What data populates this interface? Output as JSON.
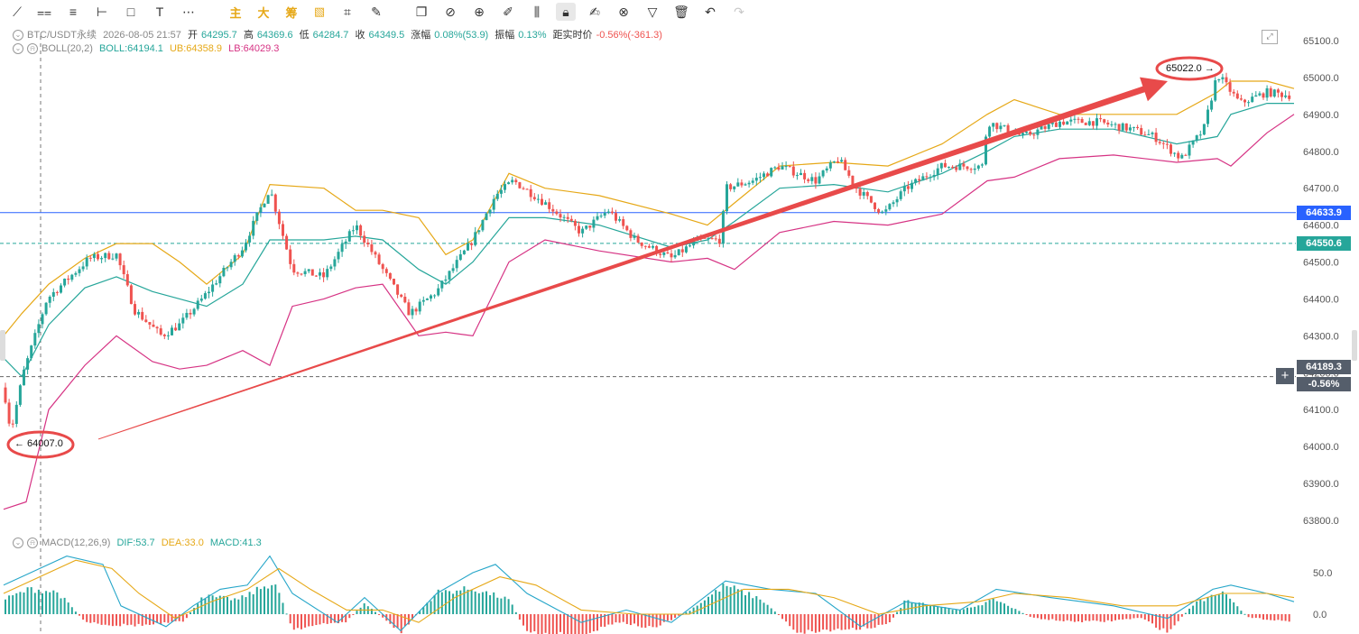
{
  "toolbar": {
    "tools": [
      {
        "icon": "trendline-icon",
        "glyph": "⟋"
      },
      {
        "icon": "parallel-lines-icon",
        "glyph": "⩵"
      },
      {
        "icon": "horizontal-lines-icon",
        "glyph": "≡"
      },
      {
        "icon": "ray-icon",
        "glyph": "⊢"
      },
      {
        "icon": "rectangle-icon",
        "glyph": "□"
      },
      {
        "icon": "text-icon",
        "glyph": "T"
      },
      {
        "icon": "more-dots-icon",
        "glyph": "⋯"
      },
      {
        "icon": "main-cn",
        "glyph": "主",
        "cn": true
      },
      {
        "icon": "big-cn",
        "glyph": "大",
        "cn": true
      },
      {
        "icon": "chip-cn",
        "glyph": "筹",
        "cn": true
      },
      {
        "icon": "indicator-icon",
        "glyph": "▧",
        "cn": true
      },
      {
        "icon": "measure-icon",
        "glyph": "⌗"
      },
      {
        "icon": "brush-icon",
        "glyph": "✎"
      },
      {
        "icon": "copy-icon",
        "glyph": "❐"
      },
      {
        "icon": "ruler-icon",
        "glyph": "⊘"
      },
      {
        "icon": "zoom-icon",
        "glyph": "⊕"
      },
      {
        "icon": "pen-icon",
        "glyph": "✐"
      },
      {
        "icon": "candle-icon",
        "glyph": "⫼"
      },
      {
        "icon": "lock-icon",
        "glyph": "🔒︎",
        "lock": true
      },
      {
        "icon": "edit-icon",
        "glyph": "✍︎"
      },
      {
        "icon": "magnet-icon",
        "glyph": "⊗"
      },
      {
        "icon": "filter-icon",
        "glyph": "▽"
      },
      {
        "icon": "trash-icon",
        "glyph": "🗑︎"
      },
      {
        "icon": "undo-icon",
        "glyph": "↶"
      },
      {
        "icon": "redo-icon",
        "glyph": "↷",
        "disabled": true
      }
    ]
  },
  "info": {
    "symbol": "BTC/USDT永续",
    "datetime": "2026-08-05 21:57",
    "open_label": "开",
    "open": "64295.7",
    "high_label": "高",
    "high": "64369.6",
    "low_label": "低",
    "low": "64284.7",
    "close_label": "收",
    "close": "64349.5",
    "change_label": "涨幅",
    "change": "0.08%(53.9)",
    "amp_label": "振幅",
    "amp": "0.13%",
    "dist_label": "距实时价",
    "dist": "-0.56%(-361.3)"
  },
  "boll": {
    "name": "BOLL(20,2)",
    "boll": "BOLL:64194.1",
    "ub": "UB:64358.9",
    "lb": "LB:64029.3"
  },
  "macd_info": {
    "name": "MACD(12,26,9)",
    "dif": "DIF:53.7",
    "dea": "DEA:33.0",
    "macd": "MACD:41.3"
  },
  "price_tags": {
    "line1": "64633.9",
    "line2": "64550.6",
    "current": "64189.3",
    "current_pct": "-0.56%"
  },
  "annotations": {
    "low": "← 64007.0",
    "high": "65022.0 →"
  },
  "colors": {
    "up": "#26a69a",
    "down": "#ef5350",
    "mid": "#26a69a",
    "ub": "#e6a817",
    "lb": "#d63384",
    "hline": "#2962ff",
    "arrow": "#e84a4a",
    "tag_blue": "#2962ff",
    "tag_green": "#26a69a",
    "tag_gray": "#555e6b"
  },
  "chart_data": {
    "type": "candlestick",
    "price_axis": {
      "ticks": [
        65100,
        65000,
        64900,
        64800,
        64700,
        64600,
        64500,
        64400,
        64300,
        64200,
        64100,
        64000,
        63900,
        63800
      ],
      "ylim": [
        63745,
        65145
      ]
    },
    "macd_axis": {
      "ticks": [
        50,
        0
      ],
      "tick_labels": [
        "50.0",
        "0.0"
      ],
      "ylim": [
        -45,
        105
      ]
    },
    "candles": 350,
    "close_path": [
      [
        0,
        64160
      ],
      [
        8,
        64040
      ],
      [
        22,
        64200
      ],
      [
        48,
        64400
      ],
      [
        95,
        64510
      ],
      [
        125,
        64520
      ],
      [
        145,
        64370
      ],
      [
        175,
        64300
      ],
      [
        195,
        64330
      ],
      [
        220,
        64400
      ],
      [
        265,
        64540
      ],
      [
        295,
        64700
      ],
      [
        320,
        64480
      ],
      [
        355,
        64460
      ],
      [
        390,
        64600
      ],
      [
        410,
        64520
      ],
      [
        450,
        64360
      ],
      [
        480,
        64420
      ],
      [
        520,
        64560
      ],
      [
        545,
        64680
      ],
      [
        565,
        64720
      ],
      [
        600,
        64660
      ],
      [
        640,
        64580
      ],
      [
        670,
        64640
      ],
      [
        700,
        64560
      ],
      [
        740,
        64510
      ],
      [
        770,
        64560
      ],
      [
        795,
        64560
      ],
      [
        800,
        64700
      ],
      [
        830,
        64720
      ],
      [
        860,
        64760
      ],
      [
        900,
        64720
      ],
      [
        925,
        64780
      ],
      [
        945,
        64700
      ],
      [
        975,
        64630
      ],
      [
        1000,
        64700
      ],
      [
        1040,
        64760
      ],
      [
        1085,
        64760
      ],
      [
        1090,
        64880
      ],
      [
        1130,
        64840
      ],
      [
        1170,
        64880
      ],
      [
        1210,
        64880
      ],
      [
        1250,
        64860
      ],
      [
        1275,
        64840
      ],
      [
        1305,
        64780
      ],
      [
        1330,
        64860
      ],
      [
        1345,
        65010
      ],
      [
        1370,
        64930
      ],
      [
        1400,
        64960
      ],
      [
        1430,
        64950
      ]
    ],
    "ub_path": [
      [
        0,
        64300
      ],
      [
        20,
        64360
      ],
      [
        50,
        64440
      ],
      [
        90,
        64510
      ],
      [
        125,
        64550
      ],
      [
        165,
        64550
      ],
      [
        195,
        64500
      ],
      [
        225,
        64440
      ],
      [
        265,
        64520
      ],
      [
        295,
        64710
      ],
      [
        355,
        64700
      ],
      [
        390,
        64640
      ],
      [
        420,
        64640
      ],
      [
        460,
        64620
      ],
      [
        490,
        64520
      ],
      [
        520,
        64560
      ],
      [
        560,
        64740
      ],
      [
        600,
        64700
      ],
      [
        660,
        64680
      ],
      [
        740,
        64630
      ],
      [
        780,
        64600
      ],
      [
        810,
        64660
      ],
      [
        860,
        64760
      ],
      [
        920,
        64770
      ],
      [
        980,
        64760
      ],
      [
        1040,
        64820
      ],
      [
        1090,
        64900
      ],
      [
        1120,
        64940
      ],
      [
        1170,
        64900
      ],
      [
        1230,
        64900
      ],
      [
        1300,
        64900
      ],
      [
        1345,
        64960
      ],
      [
        1360,
        64990
      ],
      [
        1400,
        64990
      ],
      [
        1430,
        64970
      ]
    ],
    "mid_path": [
      [
        0,
        64240
      ],
      [
        20,
        64190
      ],
      [
        50,
        64330
      ],
      [
        90,
        64430
      ],
      [
        125,
        64460
      ],
      [
        165,
        64420
      ],
      [
        195,
        64400
      ],
      [
        225,
        64380
      ],
      [
        265,
        64440
      ],
      [
        295,
        64560
      ],
      [
        355,
        64560
      ],
      [
        390,
        64570
      ],
      [
        420,
        64560
      ],
      [
        460,
        64480
      ],
      [
        490,
        64440
      ],
      [
        520,
        64500
      ],
      [
        560,
        64620
      ],
      [
        600,
        64620
      ],
      [
        660,
        64600
      ],
      [
        740,
        64540
      ],
      [
        780,
        64560
      ],
      [
        810,
        64610
      ],
      [
        860,
        64700
      ],
      [
        920,
        64710
      ],
      [
        980,
        64690
      ],
      [
        1040,
        64740
      ],
      [
        1090,
        64800
      ],
      [
        1120,
        64840
      ],
      [
        1170,
        64860
      ],
      [
        1230,
        64860
      ],
      [
        1300,
        64820
      ],
      [
        1345,
        64840
      ],
      [
        1360,
        64900
      ],
      [
        1400,
        64930
      ],
      [
        1430,
        64930
      ]
    ],
    "lb_path": [
      [
        0,
        63830
      ],
      [
        25,
        63850
      ],
      [
        50,
        64100
      ],
      [
        90,
        64220
      ],
      [
        125,
        64300
      ],
      [
        165,
        64230
      ],
      [
        195,
        64210
      ],
      [
        225,
        64220
      ],
      [
        265,
        64260
      ],
      [
        295,
        64220
      ],
      [
        320,
        64380
      ],
      [
        355,
        64400
      ],
      [
        390,
        64430
      ],
      [
        420,
        64440
      ],
      [
        460,
        64300
      ],
      [
        490,
        64310
      ],
      [
        520,
        64300
      ],
      [
        560,
        64500
      ],
      [
        600,
        64560
      ],
      [
        660,
        64530
      ],
      [
        740,
        64500
      ],
      [
        780,
        64510
      ],
      [
        810,
        64480
      ],
      [
        860,
        64580
      ],
      [
        920,
        64610
      ],
      [
        980,
        64600
      ],
      [
        1040,
        64630
      ],
      [
        1090,
        64720
      ],
      [
        1120,
        64730
      ],
      [
        1170,
        64780
      ],
      [
        1230,
        64790
      ],
      [
        1300,
        64770
      ],
      [
        1345,
        64780
      ],
      [
        1360,
        64760
      ],
      [
        1400,
        64850
      ],
      [
        1430,
        64900
      ]
    ],
    "horizontal_lines": [
      {
        "price": 64633.9,
        "style": "solid"
      },
      {
        "price": 64550.6,
        "style": "dashed"
      },
      {
        "price": 64189.3,
        "style": "dashed"
      }
    ],
    "arrow_annotation": {
      "from": {
        "i": 105,
        "price": 64020
      },
      "to": {
        "i": 1290,
        "price": 64990
      }
    },
    "low_mark": {
      "i": 8,
      "price": 64007.0
    },
    "high_mark": {
      "i": 1347,
      "price": 65022.0
    },
    "macd_hist_path": [
      [
        0,
        20
      ],
      [
        30,
        35
      ],
      [
        60,
        30
      ],
      [
        90,
        -10
      ],
      [
        120,
        -15
      ],
      [
        160,
        -15
      ],
      [
        200,
        -10
      ],
      [
        220,
        25
      ],
      [
        260,
        20
      ],
      [
        300,
        45
      ],
      [
        320,
        -20
      ],
      [
        380,
        -10
      ],
      [
        400,
        15
      ],
      [
        440,
        -25
      ],
      [
        480,
        30
      ],
      [
        520,
        35
      ],
      [
        560,
        20
      ],
      [
        580,
        -25
      ],
      [
        640,
        -30
      ],
      [
        680,
        -10
      ],
      [
        720,
        -20
      ],
      [
        760,
        5
      ],
      [
        800,
        40
      ],
      [
        840,
        20
      ],
      [
        880,
        -25
      ],
      [
        940,
        -20
      ],
      [
        980,
        -15
      ],
      [
        1000,
        20
      ],
      [
        1060,
        5
      ],
      [
        1100,
        20
      ],
      [
        1140,
        -5
      ],
      [
        1180,
        -10
      ],
      [
        1220,
        -10
      ],
      [
        1260,
        -5
      ],
      [
        1290,
        -25
      ],
      [
        1320,
        15
      ],
      [
        1350,
        30
      ],
      [
        1380,
        -5
      ],
      [
        1430,
        -10
      ]
    ],
    "dif_path": [
      [
        0,
        35
      ],
      [
        40,
        55
      ],
      [
        70,
        70
      ],
      [
        110,
        60
      ],
      [
        130,
        10
      ],
      [
        180,
        -15
      ],
      [
        210,
        10
      ],
      [
        240,
        30
      ],
      [
        270,
        35
      ],
      [
        295,
        70
      ],
      [
        320,
        25
      ],
      [
        370,
        -10
      ],
      [
        400,
        20
      ],
      [
        440,
        -20
      ],
      [
        480,
        25
      ],
      [
        520,
        50
      ],
      [
        545,
        60
      ],
      [
        580,
        25
      ],
      [
        640,
        -10
      ],
      [
        690,
        5
      ],
      [
        740,
        -10
      ],
      [
        800,
        40
      ],
      [
        850,
        30
      ],
      [
        900,
        25
      ],
      [
        950,
        -15
      ],
      [
        1000,
        15
      ],
      [
        1060,
        5
      ],
      [
        1100,
        30
      ],
      [
        1160,
        20
      ],
      [
        1230,
        10
      ],
      [
        1290,
        -5
      ],
      [
        1340,
        30
      ],
      [
        1360,
        35
      ],
      [
        1400,
        25
      ],
      [
        1430,
        15
      ]
    ],
    "dea_path": [
      [
        0,
        25
      ],
      [
        40,
        45
      ],
      [
        80,
        65
      ],
      [
        120,
        55
      ],
      [
        150,
        25
      ],
      [
        190,
        -5
      ],
      [
        230,
        15
      ],
      [
        270,
        30
      ],
      [
        305,
        55
      ],
      [
        340,
        30
      ],
      [
        380,
        5
      ],
      [
        420,
        5
      ],
      [
        460,
        -10
      ],
      [
        500,
        20
      ],
      [
        550,
        45
      ],
      [
        590,
        35
      ],
      [
        640,
        5
      ],
      [
        700,
        0
      ],
      [
        760,
        0
      ],
      [
        820,
        30
      ],
      [
        870,
        30
      ],
      [
        920,
        20
      ],
      [
        970,
        0
      ],
      [
        1020,
        10
      ],
      [
        1080,
        15
      ],
      [
        1120,
        25
      ],
      [
        1180,
        20
      ],
      [
        1240,
        10
      ],
      [
        1300,
        10
      ],
      [
        1350,
        25
      ],
      [
        1400,
        25
      ],
      [
        1430,
        20
      ]
    ]
  }
}
